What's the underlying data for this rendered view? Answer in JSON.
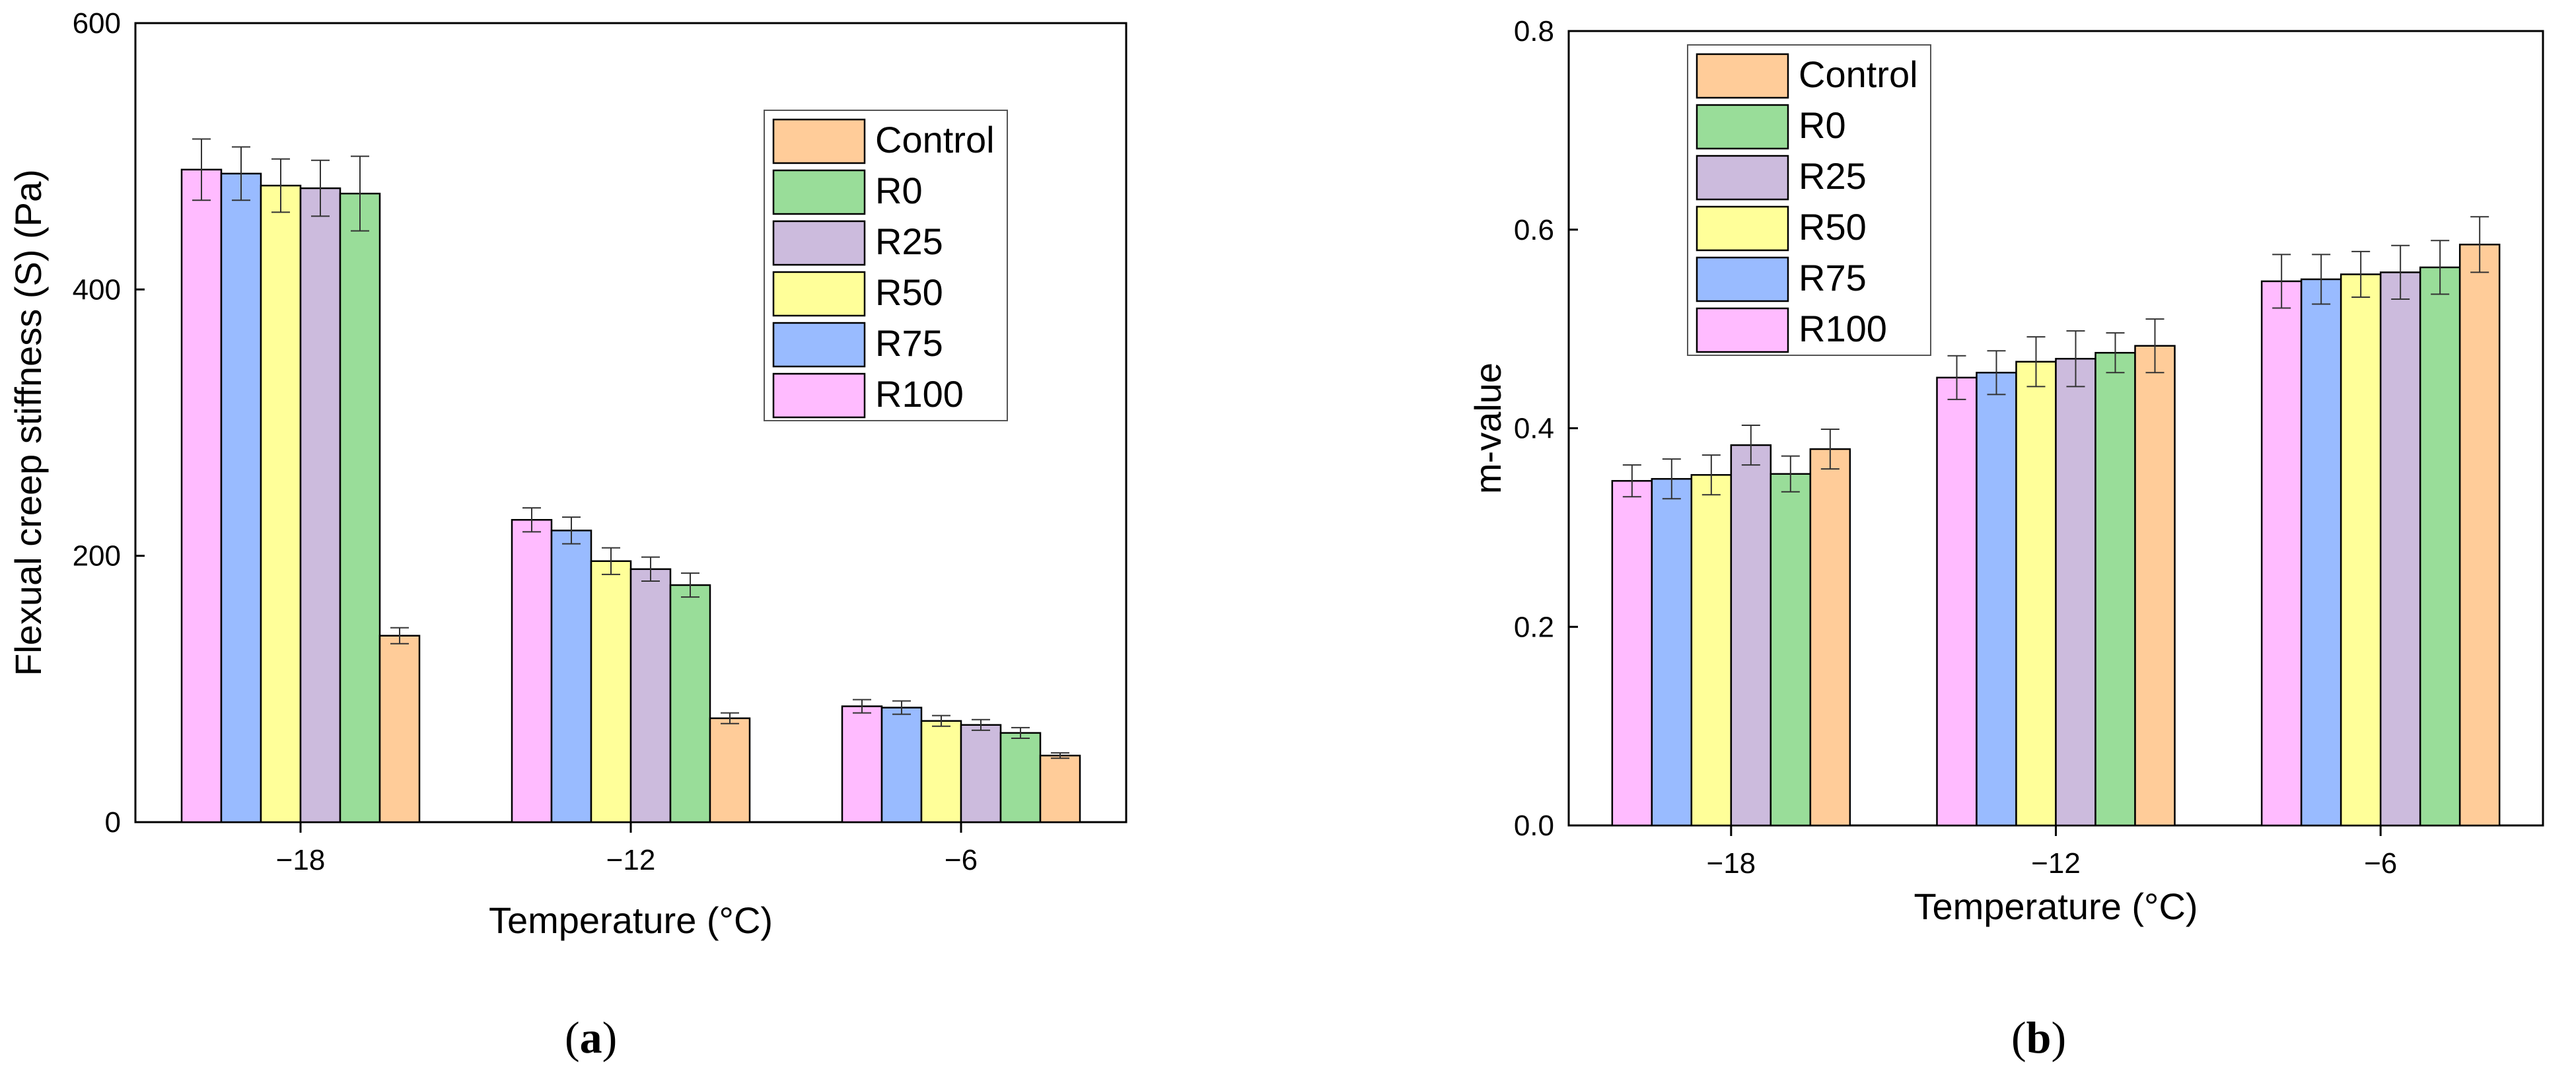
{
  "colors": {
    "Control": "#FFCC99",
    "R0": "#99DD99",
    "R25": "#CCBBDD",
    "R50": "#FFFF99",
    "R75": "#99BBFF",
    "R100": "#FFBBFF"
  },
  "captions": {
    "a": "a",
    "b": "b"
  },
  "chart_data": [
    {
      "type": "bar",
      "title": "",
      "xlabel": "Temperature (°C)",
      "ylabel": "Flexual creep stiffness (S) (Pa)",
      "ylim": [
        0,
        600
      ],
      "yticks": [
        "0",
        "200",
        "400",
        "600"
      ],
      "categories": [
        "−18",
        "−12",
        "−6"
      ],
      "legend_order": [
        "Control",
        "R0",
        "R25",
        "R50",
        "R75",
        "R100"
      ],
      "legend_position": "top-right",
      "series": [
        {
          "name": "R100",
          "values": [
            490,
            227,
            87
          ],
          "errors": [
            23,
            9,
            5
          ]
        },
        {
          "name": "R75",
          "values": [
            487,
            219,
            86
          ],
          "errors": [
            20,
            10,
            5
          ]
        },
        {
          "name": "R50",
          "values": [
            478,
            196,
            76
          ],
          "errors": [
            20,
            10,
            4
          ]
        },
        {
          "name": "R25",
          "values": [
            476,
            190,
            73
          ],
          "errors": [
            21,
            9,
            4
          ]
        },
        {
          "name": "R0",
          "values": [
            472,
            178,
            67
          ],
          "errors": [
            28,
            9,
            4
          ]
        },
        {
          "name": "Control",
          "values": [
            140,
            78,
            50
          ],
          "errors": [
            6,
            4,
            2
          ]
        }
      ]
    },
    {
      "type": "bar",
      "title": "",
      "xlabel": "Temperature (°C)",
      "ylabel": "m-value",
      "ylim": [
        0,
        0.8
      ],
      "yticks": [
        "0.0",
        "0.2",
        "0.4",
        "0.6",
        "0.8"
      ],
      "categories": [
        "−18",
        "−12",
        "−6"
      ],
      "legend_order": [
        "Control",
        "R0",
        "R25",
        "R50",
        "R75",
        "R100"
      ],
      "legend_position": "top-left",
      "series": [
        {
          "name": "R100",
          "values": [
            0.347,
            0.451,
            0.548
          ],
          "errors": [
            0.016,
            0.022,
            0.027
          ]
        },
        {
          "name": "R75",
          "values": [
            0.349,
            0.456,
            0.55
          ],
          "errors": [
            0.02,
            0.022,
            0.025
          ]
        },
        {
          "name": "R50",
          "values": [
            0.353,
            0.467,
            0.555
          ],
          "errors": [
            0.02,
            0.025,
            0.023
          ]
        },
        {
          "name": "R25",
          "values": [
            0.383,
            0.47,
            0.557
          ],
          "errors": [
            0.02,
            0.028,
            0.027
          ]
        },
        {
          "name": "R0",
          "values": [
            0.354,
            0.476,
            0.562
          ],
          "errors": [
            0.018,
            0.02,
            0.027
          ]
        },
        {
          "name": "Control",
          "values": [
            0.379,
            0.483,
            0.585
          ],
          "errors": [
            0.02,
            0.027,
            0.028
          ]
        }
      ]
    }
  ]
}
